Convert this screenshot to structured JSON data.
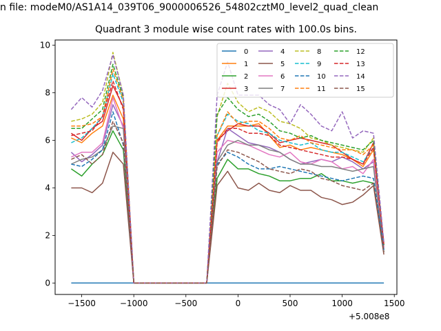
{
  "figure": {
    "suptitle": "n file: modeM0/AS1A14_039T06_9000006526_54802cztM0_level2_quad_clean",
    "title": "Quadrant 3 module wise count rates with 100.0s bins.",
    "x_offset_label": "+5.008e8"
  },
  "chart_data": {
    "type": "line",
    "title": "Quadrant 3 module wise count rates with 100.0s bins.",
    "xlabel": "",
    "ylabel": "",
    "x_offset": 500800000,
    "xlim": [
      -1755,
      1525
    ],
    "ylim": [
      -0.48,
      10.22
    ],
    "xticks": [
      -1500,
      -1000,
      -500,
      0,
      500,
      1000,
      1500
    ],
    "xtick_labels": [
      "−1500",
      "−1000",
      "−500",
      "0",
      "500",
      "1000",
      "1500"
    ],
    "yticks": [
      0,
      2,
      4,
      6,
      8,
      10
    ],
    "ytick_labels": [
      "0",
      "2",
      "4",
      "6",
      "8",
      "10"
    ],
    "grid": false,
    "legend": {
      "placement": "top-right",
      "columns": 4
    },
    "x": [
      -1600,
      -1500,
      -1400,
      -1300,
      -1200,
      -1100,
      -1000,
      -900,
      -800,
      -700,
      -600,
      -500,
      -400,
      -300,
      -200,
      -100,
      0,
      100,
      200,
      300,
      400,
      500,
      600,
      700,
      800,
      900,
      1000,
      1100,
      1200,
      1300,
      1400
    ],
    "series": [
      {
        "name": "0",
        "color": "#1f77b4",
        "style": "solid",
        "values": [
          0,
          0,
          0,
          0,
          0,
          0,
          0,
          0,
          0,
          0,
          0,
          0,
          0,
          0,
          0,
          0,
          0,
          0,
          0,
          0,
          0,
          0,
          0,
          0,
          0,
          0,
          0,
          0,
          0,
          0,
          0
        ]
      },
      {
        "name": "1",
        "color": "#ff7f0e",
        "style": "solid",
        "values": [
          6.1,
          5.9,
          6.3,
          6.6,
          7.9,
          6.9,
          0,
          0,
          0,
          0,
          0,
          0,
          0,
          0,
          6.0,
          6.6,
          6.6,
          6.6,
          6.7,
          6.2,
          5.7,
          5.8,
          5.6,
          5.7,
          5.6,
          5.5,
          5.4,
          5.2,
          4.9,
          5.6,
          1.6
        ]
      },
      {
        "name": "2",
        "color": "#2ca02c",
        "style": "solid",
        "values": [
          4.8,
          4.5,
          5.0,
          5.4,
          6.4,
          5.6,
          0,
          0,
          0,
          0,
          0,
          0,
          0,
          0,
          4.4,
          5.2,
          4.8,
          4.8,
          4.6,
          4.5,
          4.3,
          4.3,
          4.4,
          4.4,
          4.6,
          4.3,
          4.3,
          4.2,
          4.3,
          4.2,
          1.3
        ]
      },
      {
        "name": "3",
        "color": "#d62728",
        "style": "solid",
        "values": [
          6.3,
          6.0,
          6.5,
          6.8,
          8.3,
          7.4,
          0,
          0,
          0,
          0,
          0,
          0,
          0,
          0,
          6.0,
          6.4,
          6.7,
          6.6,
          6.6,
          6.3,
          5.9,
          6.0,
          6.1,
          6.0,
          5.9,
          5.8,
          5.5,
          5.2,
          5.0,
          5.9,
          1.5
        ]
      },
      {
        "name": "4",
        "color": "#9467bd",
        "style": "solid",
        "values": [
          5.5,
          5.1,
          5.4,
          5.8,
          7.5,
          6.6,
          0,
          0,
          0,
          0,
          0,
          0,
          0,
          0,
          5.1,
          6.5,
          6.2,
          5.9,
          5.8,
          5.7,
          5.5,
          5.2,
          5.0,
          5.1,
          5.2,
          5.1,
          5.3,
          5.1,
          4.8,
          5.1,
          1.4
        ]
      },
      {
        "name": "5",
        "color": "#8c564b",
        "style": "solid",
        "values": [
          4.0,
          4.0,
          3.8,
          4.2,
          5.5,
          5.0,
          0,
          0,
          0,
          0,
          0,
          0,
          0,
          0,
          4.1,
          4.7,
          4.0,
          3.9,
          4.2,
          3.9,
          3.8,
          4.1,
          3.9,
          3.9,
          3.6,
          3.5,
          3.3,
          3.4,
          3.7,
          4.1,
          1.2
        ]
      },
      {
        "name": "6",
        "color": "#e377c2",
        "style": "solid",
        "values": [
          5.3,
          5.5,
          5.5,
          5.9,
          7.8,
          6.5,
          0,
          0,
          0,
          0,
          0,
          0,
          0,
          0,
          5.5,
          6.0,
          5.9,
          5.8,
          5.6,
          5.4,
          5.3,
          5.5,
          5.1,
          5.0,
          5.2,
          5.1,
          4.8,
          4.9,
          4.6,
          5.2,
          1.5
        ]
      },
      {
        "name": "7",
        "color": "#7f7f7f",
        "style": "solid",
        "values": [
          5.0,
          5.2,
          5.3,
          5.6,
          6.6,
          6.5,
          0,
          0,
          0,
          0,
          0,
          0,
          0,
          0,
          5.1,
          5.8,
          6.0,
          5.8,
          5.8,
          5.6,
          5.5,
          5.2,
          5.0,
          5.0,
          4.9,
          4.9,
          4.8,
          4.7,
          4.8,
          4.9,
          1.3
        ]
      },
      {
        "name": "8",
        "color": "#bcbd22",
        "style": "dashed",
        "values": [
          6.8,
          6.9,
          7.1,
          7.6,
          9.7,
          7.9,
          0,
          0,
          0,
          0,
          0,
          0,
          0,
          0,
          7.0,
          8.4,
          7.6,
          7.2,
          7.4,
          7.2,
          6.8,
          6.7,
          6.5,
          6.1,
          6.0,
          5.8,
          5.7,
          5.6,
          5.5,
          6.1,
          1.6
        ]
      },
      {
        "name": "9",
        "color": "#17becf",
        "style": "dashed",
        "values": [
          5.9,
          6.1,
          6.5,
          7.0,
          8.8,
          7.6,
          0,
          0,
          0,
          0,
          0,
          0,
          0,
          0,
          6.2,
          7.1,
          6.8,
          6.7,
          6.4,
          6.3,
          6.0,
          5.9,
          5.8,
          5.9,
          5.6,
          5.5,
          5.5,
          5.3,
          5.1,
          5.7,
          1.6
        ]
      },
      {
        "name": "10",
        "color": "#1f77b4",
        "style": "dashed",
        "values": [
          5.0,
          4.9,
          5.2,
          5.6,
          7.2,
          5.8,
          0,
          0,
          0,
          0,
          0,
          0,
          0,
          0,
          5.0,
          5.5,
          5.3,
          5.0,
          4.8,
          4.8,
          4.9,
          4.8,
          4.7,
          4.6,
          4.5,
          4.4,
          4.3,
          4.4,
          4.5,
          4.4,
          1.4
        ]
      },
      {
        "name": "11",
        "color": "#ff7f0e",
        "style": "dashed",
        "values": [
          6.6,
          6.6,
          6.7,
          7.0,
          9.0,
          7.7,
          0,
          0,
          0,
          0,
          0,
          0,
          0,
          0,
          6.2,
          7.2,
          6.7,
          6.8,
          6.8,
          6.5,
          6.1,
          6.0,
          6.2,
          5.9,
          5.8,
          5.7,
          5.6,
          5.6,
          5.4,
          5.8,
          1.7
        ]
      },
      {
        "name": "12",
        "color": "#2ca02c",
        "style": "dashed",
        "values": [
          6.5,
          6.5,
          6.9,
          7.3,
          9.2,
          7.8,
          0,
          0,
          0,
          0,
          0,
          0,
          0,
          0,
          7.1,
          7.8,
          7.3,
          7.0,
          7.1,
          6.8,
          6.4,
          6.3,
          6.1,
          6.2,
          6.0,
          5.9,
          5.8,
          5.7,
          5.6,
          6.0,
          1.6
        ]
      },
      {
        "name": "13",
        "color": "#d62728",
        "style": "dashed",
        "values": [
          6.2,
          6.3,
          6.4,
          7.0,
          8.5,
          7.3,
          0,
          0,
          0,
          0,
          0,
          0,
          0,
          0,
          5.9,
          6.5,
          6.5,
          6.3,
          6.3,
          6.2,
          5.8,
          5.7,
          5.6,
          5.5,
          5.4,
          5.3,
          5.3,
          5.2,
          5.0,
          5.7,
          1.6
        ]
      },
      {
        "name": "14",
        "color": "#9467bd",
        "style": "dashed",
        "values": [
          7.3,
          7.8,
          7.4,
          8.1,
          9.6,
          7.9,
          0,
          0,
          0,
          0,
          0,
          0,
          0,
          0,
          7.9,
          9.3,
          7.9,
          7.9,
          7.9,
          7.5,
          7.3,
          6.7,
          7.5,
          7.1,
          6.6,
          6.4,
          7.2,
          6.1,
          6.4,
          6.3,
          1.7
        ]
      },
      {
        "name": "15",
        "color": "#8c564b",
        "style": "dashed",
        "values": [
          5.2,
          5.4,
          5.0,
          5.4,
          6.8,
          5.9,
          0,
          0,
          0,
          0,
          0,
          0,
          0,
          0,
          4.9,
          5.6,
          5.5,
          5.3,
          5.1,
          4.8,
          4.7,
          4.6,
          4.8,
          4.7,
          4.4,
          4.3,
          4.1,
          4.0,
          3.9,
          4.2,
          1.3
        ]
      }
    ]
  }
}
